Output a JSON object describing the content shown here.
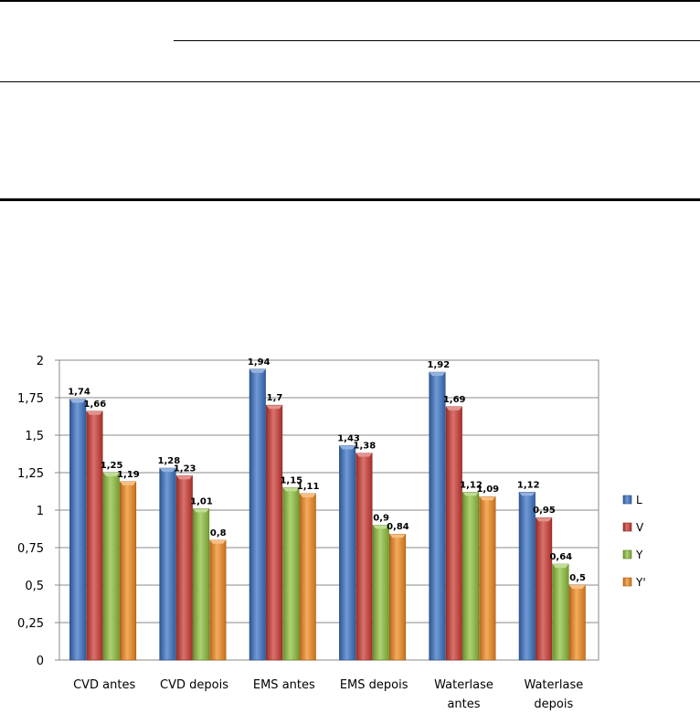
{
  "chart_data": {
    "type": "bar",
    "categories": [
      [
        "CVD antes"
      ],
      [
        "CVD depois"
      ],
      [
        "EMS antes"
      ],
      [
        "EMS depois"
      ],
      [
        "Waterlase",
        "antes"
      ],
      [
        "Waterlase",
        "depois"
      ]
    ],
    "series": [
      {
        "name": "L",
        "color": "#3a73c5",
        "values": [
          1.74,
          1.28,
          1.94,
          1.43,
          1.92,
          1.12
        ],
        "labels": [
          "1,74",
          "1,28",
          "1,94",
          "1,43",
          "1,92",
          "1,12"
        ]
      },
      {
        "name": "V",
        "color": "#cc3a33",
        "values": [
          1.66,
          1.23,
          1.7,
          1.38,
          1.69,
          0.95
        ],
        "labels": [
          "1,66",
          "1,23",
          "1,7",
          "1,38",
          "1,69",
          "0,95"
        ]
      },
      {
        "name": "Y",
        "color": "#8fc13c",
        "values": [
          1.25,
          1.01,
          1.15,
          0.9,
          1.12,
          0.64
        ],
        "labels": [
          "1,25",
          "1,01",
          "1,15",
          "0,9",
          "1,12",
          "0,64"
        ]
      },
      {
        "name": "Y'",
        "color": "#f28a1e",
        "values": [
          1.19,
          0.8,
          1.11,
          0.84,
          1.09,
          0.5
        ],
        "labels": [
          "1,19",
          "0,8",
          "1,11",
          "0,84",
          "1,09",
          "0,5"
        ]
      }
    ],
    "yticks": [
      0,
      0.25,
      0.5,
      0.75,
      1,
      1.25,
      1.5,
      1.75,
      2
    ],
    "ytick_labels": [
      "0",
      "0,25",
      "0,5",
      "0,75",
      "1",
      "1,25",
      "1,5",
      "1,75",
      "2"
    ],
    "ylim": [
      0,
      2
    ],
    "grid": true,
    "legend_position": "right"
  }
}
